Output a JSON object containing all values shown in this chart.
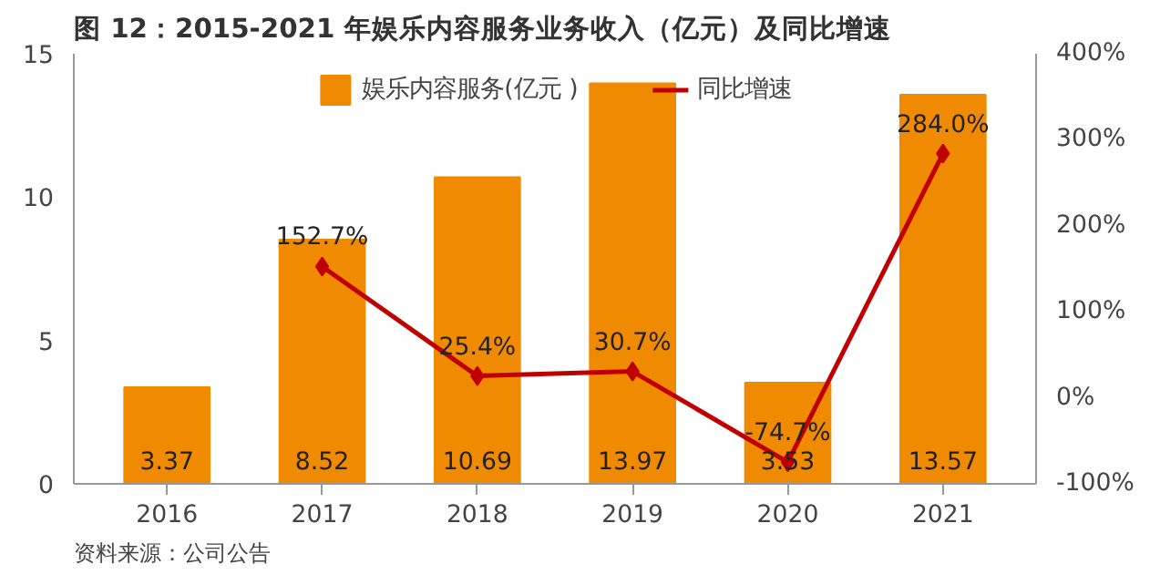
{
  "chart_data": {
    "type": "bar",
    "title": "图 12：2015-2021 年娱乐内容服务业务收入（亿元）及同比增速",
    "categories": [
      "2016",
      "2017",
      "2018",
      "2019",
      "2020",
      "2021"
    ],
    "series": [
      {
        "name": "娱乐内容服务(亿元 )",
        "color": "#f08a00",
        "values": [
          3.37,
          8.52,
          10.69,
          13.97,
          3.53,
          13.57
        ],
        "value_labels": [
          "3.37",
          "8.52",
          "10.69",
          "13.97",
          "3.53",
          "13.57"
        ]
      },
      {
        "name": "同比增速",
        "type": "line",
        "axis": "y2",
        "color": "#c00000",
        "marker": "diamond",
        "values": [
          null,
          152.7,
          25.4,
          30.7,
          -74.7,
          284.0
        ],
        "value_labels": [
          null,
          "152.7%",
          "25.4%",
          "30.7%",
          "-74.7%",
          "284.0%"
        ]
      }
    ],
    "ylim": [
      0,
      15
    ],
    "yticks": [
      0,
      5,
      10,
      15
    ],
    "y2lim": [
      -100,
      400
    ],
    "y2ticks": [
      {
        "value": -100,
        "label": "-100%"
      },
      {
        "value": 0,
        "label": "0%"
      },
      {
        "value": 100,
        "label": "100%"
      },
      {
        "value": 200,
        "label": "200%"
      },
      {
        "value": 300,
        "label": "300%"
      },
      {
        "value": 400,
        "label": "400%"
      }
    ],
    "legend": "top",
    "grid": false,
    "annotations": [
      "资料来源：公司公告"
    ]
  }
}
